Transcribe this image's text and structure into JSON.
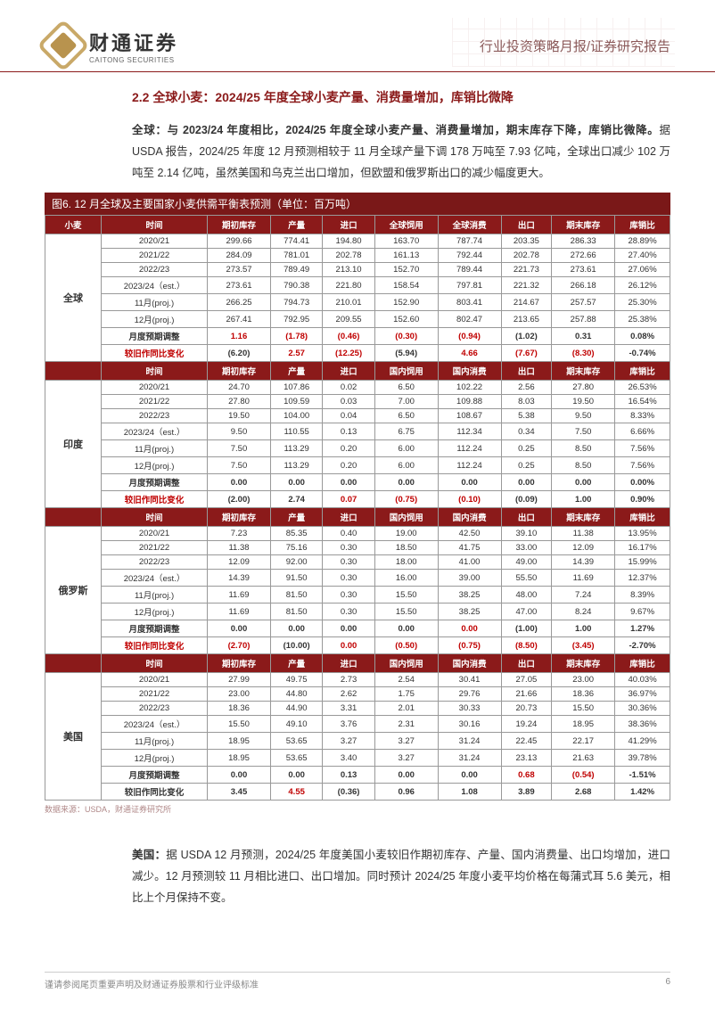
{
  "header": {
    "logo_cn": "财通证券",
    "logo_en": "CAITONG SECURITIES",
    "title": "行业投资策略月报/证券研究报告"
  },
  "section": {
    "title": "2.2 全球小麦：2024/25 年度全球小麦产量、消费量增加，库销比微降",
    "p1_bold": "全球：与 2023/24 年度相比，2024/25 年度全球小麦产量、消费量增加，期末库存下降，库销比微降。",
    "p1_rest": "据 USDA 报告，2024/25 年度 12 月预测相较于 11 月全球产量下调 178 万吨至 7.93 亿吨，全球出口减少 102 万吨至 2.14 亿吨，虽然美国和乌克兰出口增加，但欧盟和俄罗斯出口的减少幅度更大。",
    "p2_bold": "美国：",
    "p2_rest": "据 USDA 12 月预测，2024/25 年度美国小麦较旧作期初库存、产量、国内消费量、出口均增加，进口减少。12 月预测较 11 月相比进口、出口增加。同时预计 2024/25 年度小麦平均价格在每蒲式耳 5.6 美元，相比上个月保持不变。"
  },
  "figure": {
    "caption": "图6. 12 月全球及主要国家小麦供需平衡表预测（单位：百万吨）",
    "source": "数据来源：USDA，财通证券研究所"
  },
  "table": {
    "header_colors": {
      "bg": "#8b1a1a",
      "fg": "#ffffff"
    },
    "sections": [
      {
        "region": "全球",
        "head": [
          "小麦",
          "时间",
          "期初库存",
          "产量",
          "进口",
          "全球饲用",
          "全球消费",
          "出口",
          "期末库存",
          "库销比"
        ],
        "rows": [
          {
            "cells": [
              "2020/21",
              "299.66",
              "774.41",
              "194.80",
              "163.70",
              "787.74",
              "203.35",
              "286.33",
              "28.89%"
            ],
            "neg": []
          },
          {
            "cells": [
              "2021/22",
              "284.09",
              "781.01",
              "202.78",
              "161.13",
              "792.44",
              "202.78",
              "272.66",
              "27.40%"
            ],
            "neg": []
          },
          {
            "cells": [
              "2022/23",
              "273.57",
              "789.49",
              "213.10",
              "152.70",
              "789.44",
              "221.73",
              "273.61",
              "27.06%"
            ],
            "neg": []
          },
          {
            "cells": [
              "2023/24（est.）",
              "273.61",
              "790.38",
              "221.80",
              "158.54",
              "797.81",
              "221.32",
              "266.18",
              "26.12%"
            ],
            "neg": []
          },
          {
            "cells": [
              "11月(proj.)",
              "266.25",
              "794.73",
              "210.01",
              "152.90",
              "803.41",
              "214.67",
              "257.57",
              "25.30%"
            ],
            "neg": []
          },
          {
            "cells": [
              "12月(proj.)",
              "267.41",
              "792.95",
              "209.55",
              "152.60",
              "802.47",
              "213.65",
              "257.88",
              "25.38%"
            ],
            "neg": []
          },
          {
            "cells": [
              "月度预期调整",
              "1.16",
              "(1.78)",
              "(0.46)",
              "(0.30)",
              "(0.94)",
              "(1.02)",
              "0.31",
              "0.08%"
            ],
            "neg": [
              2,
              3,
              4,
              5,
              6
            ],
            "bold": true
          },
          {
            "cells": [
              "较旧作同比变化",
              "(6.20)",
              "2.57",
              "(12.25)",
              "(5.94)",
              "4.66",
              "(7.67)",
              "(8.30)",
              "-0.74%"
            ],
            "neg": [
              1,
              3,
              4,
              6,
              7,
              8
            ],
            "bold": true
          }
        ]
      },
      {
        "region": "印度",
        "head": [
          "",
          "时间",
          "期初库存",
          "产量",
          "进口",
          "国内饲用",
          "国内消费",
          "出口",
          "期末库存",
          "库销比"
        ],
        "rows": [
          {
            "cells": [
              "2020/21",
              "24.70",
              "107.86",
              "0.02",
              "6.50",
              "102.22",
              "2.56",
              "27.80",
              "26.53%"
            ],
            "neg": []
          },
          {
            "cells": [
              "2021/22",
              "27.80",
              "109.59",
              "0.03",
              "7.00",
              "109.88",
              "8.03",
              "19.50",
              "16.54%"
            ],
            "neg": []
          },
          {
            "cells": [
              "2022/23",
              "19.50",
              "104.00",
              "0.04",
              "6.50",
              "108.67",
              "5.38",
              "9.50",
              "8.33%"
            ],
            "neg": []
          },
          {
            "cells": [
              "2023/24（est.）",
              "9.50",
              "110.55",
              "0.13",
              "6.75",
              "112.34",
              "0.34",
              "7.50",
              "6.66%"
            ],
            "neg": []
          },
          {
            "cells": [
              "11月(proj.)",
              "7.50",
              "113.29",
              "0.20",
              "6.00",
              "112.24",
              "0.25",
              "8.50",
              "7.56%"
            ],
            "neg": []
          },
          {
            "cells": [
              "12月(proj.)",
              "7.50",
              "113.29",
              "0.20",
              "6.00",
              "112.24",
              "0.25",
              "8.50",
              "7.56%"
            ],
            "neg": []
          },
          {
            "cells": [
              "月度预期调整",
              "0.00",
              "0.00",
              "0.00",
              "0.00",
              "0.00",
              "0.00",
              "0.00",
              "0.00%"
            ],
            "neg": [],
            "bold": true
          },
          {
            "cells": [
              "较旧作同比变化",
              "(2.00)",
              "2.74",
              "0.07",
              "(0.75)",
              "(0.10)",
              "(0.09)",
              "1.00",
              "0.90%"
            ],
            "neg": [
              1,
              4,
              5,
              6
            ],
            "bold": true
          }
        ]
      },
      {
        "region": "俄罗斯",
        "head": [
          "",
          "时间",
          "期初库存",
          "产量",
          "进口",
          "国内饲用",
          "国内消费",
          "出口",
          "期末库存",
          "库销比"
        ],
        "rows": [
          {
            "cells": [
              "2020/21",
              "7.23",
              "85.35",
              "0.40",
              "19.00",
              "42.50",
              "39.10",
              "11.38",
              "13.95%"
            ],
            "neg": []
          },
          {
            "cells": [
              "2021/22",
              "11.38",
              "75.16",
              "0.30",
              "18.50",
              "41.75",
              "33.00",
              "12.09",
              "16.17%"
            ],
            "neg": []
          },
          {
            "cells": [
              "2022/23",
              "12.09",
              "92.00",
              "0.30",
              "18.00",
              "41.00",
              "49.00",
              "14.39",
              "15.99%"
            ],
            "neg": []
          },
          {
            "cells": [
              "2023/24（est.）",
              "14.39",
              "91.50",
              "0.30",
              "16.00",
              "39.00",
              "55.50",
              "11.69",
              "12.37%"
            ],
            "neg": []
          },
          {
            "cells": [
              "11月(proj.)",
              "11.69",
              "81.50",
              "0.30",
              "15.50",
              "38.25",
              "48.00",
              "7.24",
              "8.39%"
            ],
            "neg": []
          },
          {
            "cells": [
              "12月(proj.)",
              "11.69",
              "81.50",
              "0.30",
              "15.50",
              "38.25",
              "47.00",
              "8.24",
              "9.67%"
            ],
            "neg": []
          },
          {
            "cells": [
              "月度预期调整",
              "0.00",
              "0.00",
              "0.00",
              "0.00",
              "0.00",
              "(1.00)",
              "1.00",
              "1.27%"
            ],
            "neg": [
              6
            ],
            "bold": true
          },
          {
            "cells": [
              "较旧作同比变化",
              "(2.70)",
              "(10.00)",
              "0.00",
              "(0.50)",
              "(0.75)",
              "(8.50)",
              "(3.45)",
              "-2.70%"
            ],
            "neg": [
              1,
              2,
              4,
              5,
              6,
              7,
              8
            ],
            "bold": true
          }
        ]
      },
      {
        "region": "美国",
        "head": [
          "",
          "时间",
          "期初库存",
          "产量",
          "进口",
          "国内饲用",
          "国内消费",
          "出口",
          "期末库存",
          "库销比"
        ],
        "rows": [
          {
            "cells": [
              "2020/21",
              "27.99",
              "49.75",
              "2.73",
              "2.54",
              "30.41",
              "27.05",
              "23.00",
              "40.03%"
            ],
            "neg": []
          },
          {
            "cells": [
              "2021/22",
              "23.00",
              "44.80",
              "2.62",
              "1.75",
              "29.76",
              "21.66",
              "18.36",
              "36.97%"
            ],
            "neg": []
          },
          {
            "cells": [
              "2022/23",
              "18.36",
              "44.90",
              "3.31",
              "2.01",
              "30.33",
              "20.73",
              "15.50",
              "30.36%"
            ],
            "neg": []
          },
          {
            "cells": [
              "2023/24（est.）",
              "15.50",
              "49.10",
              "3.76",
              "2.31",
              "30.16",
              "19.24",
              "18.95",
              "38.36%"
            ],
            "neg": []
          },
          {
            "cells": [
              "11月(proj.)",
              "18.95",
              "53.65",
              "3.27",
              "3.27",
              "31.24",
              "22.45",
              "22.17",
              "41.29%"
            ],
            "neg": []
          },
          {
            "cells": [
              "12月(proj.)",
              "18.95",
              "53.65",
              "3.40",
              "3.27",
              "31.24",
              "23.13",
              "21.63",
              "39.78%"
            ],
            "neg": []
          },
          {
            "cells": [
              "月度预期调整",
              "0.00",
              "0.00",
              "0.13",
              "0.00",
              "0.00",
              "0.68",
              "(0.54)",
              "-1.51%"
            ],
            "neg": [
              7,
              8
            ],
            "bold": true
          },
          {
            "cells": [
              "较旧作同比变化",
              "3.45",
              "4.55",
              "(0.36)",
              "0.96",
              "1.08",
              "3.89",
              "2.68",
              "1.42%"
            ],
            "neg": [
              3
            ],
            "bold": true
          }
        ]
      }
    ]
  },
  "footer": {
    "disclaimer": "谨请参阅尾页重要声明及财通证券股票和行业评级标准",
    "page": "6"
  }
}
